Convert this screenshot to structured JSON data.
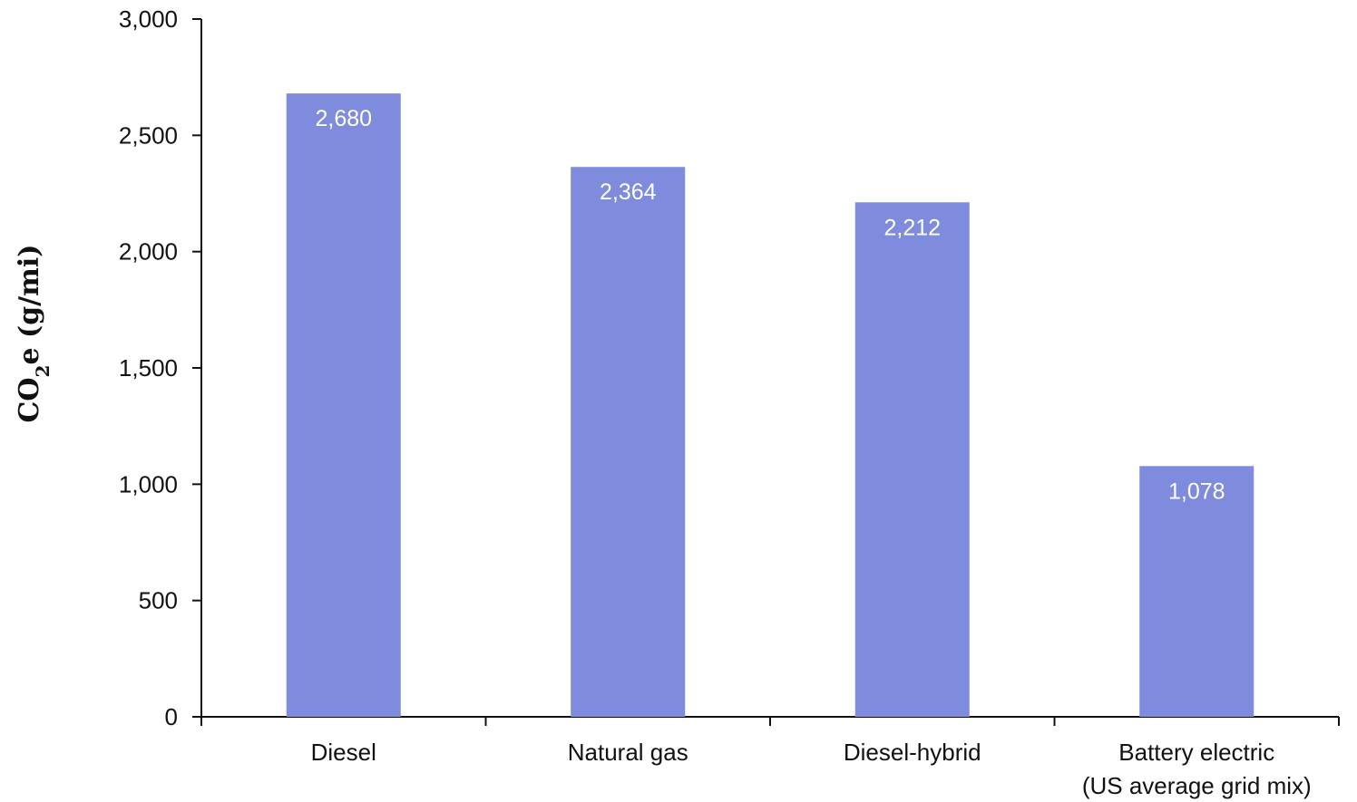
{
  "chart_data": {
    "type": "bar",
    "categories": [
      [
        "Diesel"
      ],
      [
        "Natural gas"
      ],
      [
        "Diesel-hybrid"
      ],
      [
        "Battery electric",
        "(US average grid mix)"
      ]
    ],
    "values": [
      2680,
      2364,
      2212,
      1078
    ],
    "data_labels": [
      "2,680",
      "2,364",
      "2,212",
      "1,078"
    ],
    "ylabel": {
      "main": "CO",
      "sub": "2",
      "rest": "e (g/mi)"
    },
    "ylim": [
      0,
      3000
    ],
    "yticks": [
      0,
      500,
      1000,
      1500,
      2000,
      2500,
      3000
    ],
    "ytick_labels": [
      "0",
      "500",
      "1,000",
      "1,500",
      "2,000",
      "2,500",
      "3,000"
    ],
    "bar_color": "#7f8bdd",
    "grid": false,
    "legend": "none"
  }
}
